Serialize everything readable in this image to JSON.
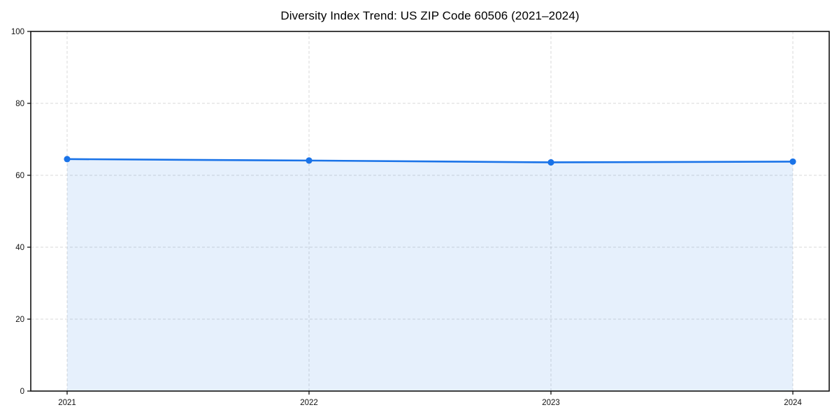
{
  "chart_data": {
    "type": "line",
    "title": "Diversity Index Trend: US ZIP Code 60506 (2021–2024)",
    "xlabel": "",
    "ylabel": "",
    "categories": [
      "2021",
      "2022",
      "2023",
      "2024"
    ],
    "series": [
      {
        "name": "Diversity Index",
        "values": [
          64.5,
          64.1,
          63.6,
          63.8
        ]
      }
    ],
    "ylim": [
      0,
      100
    ],
    "yticks": [
      0,
      20,
      40,
      60,
      80,
      100
    ],
    "grid": "dashed, both horizontal and vertical",
    "legend": "none",
    "area_fill": true,
    "markers": "filled circles at each year",
    "colors": {
      "line": "#1a73e8",
      "marker": "#1a73e8",
      "area_fill": "rgba(26,115,232,0.11)",
      "gridline": "#d9d9d9",
      "axis_spine": "#111111",
      "tick_label": "#111111",
      "title": "#000000",
      "background": "#ffffff"
    }
  }
}
